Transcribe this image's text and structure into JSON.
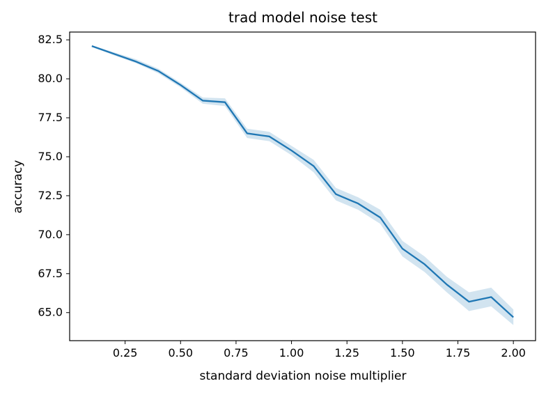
{
  "chart_data": {
    "type": "line",
    "title": "trad model noise test",
    "xlabel": "standard deviation noise multiplier",
    "ylabel": "accuracy",
    "xlim": [
      0.0,
      2.1
    ],
    "ylim": [
      63.2,
      83.0
    ],
    "xticks": [
      0.25,
      0.5,
      0.75,
      1.0,
      1.25,
      1.5,
      1.75,
      2.0
    ],
    "xtick_labels": [
      "0.25",
      "0.50",
      "0.75",
      "1.00",
      "1.25",
      "1.50",
      "1.75",
      "2.00"
    ],
    "yticks": [
      65.0,
      67.5,
      70.0,
      72.5,
      75.0,
      77.5,
      80.0,
      82.5
    ],
    "ytick_labels": [
      "65.0",
      "67.5",
      "70.0",
      "72.5",
      "75.0",
      "77.5",
      "80.0",
      "82.5"
    ],
    "grid": false,
    "series": [
      {
        "color": "#1f77b4",
        "band_color": "#1f77b4",
        "x": [
          0.1,
          0.2,
          0.3,
          0.4,
          0.5,
          0.6,
          0.7,
          0.8,
          0.9,
          1.0,
          1.1,
          1.2,
          1.3,
          1.4,
          1.5,
          1.6,
          1.7,
          1.8,
          1.9,
          2.0
        ],
        "y": [
          82.1,
          81.6,
          81.1,
          80.5,
          79.6,
          78.6,
          78.5,
          76.5,
          76.3,
          75.4,
          74.4,
          72.6,
          72.0,
          71.1,
          69.1,
          68.1,
          66.8,
          65.7,
          66.0,
          64.7
        ],
        "lower": [
          82.05,
          81.5,
          81.0,
          80.35,
          79.45,
          78.4,
          78.25,
          76.2,
          76.0,
          75.1,
          74.0,
          72.2,
          71.6,
          70.7,
          68.6,
          67.6,
          66.3,
          65.1,
          65.4,
          64.2
        ],
        "upper": [
          82.15,
          81.7,
          81.25,
          80.65,
          79.75,
          78.8,
          78.75,
          76.8,
          76.6,
          75.7,
          74.8,
          73.0,
          72.4,
          71.6,
          69.6,
          68.6,
          67.3,
          66.3,
          66.6,
          65.2
        ]
      }
    ]
  }
}
